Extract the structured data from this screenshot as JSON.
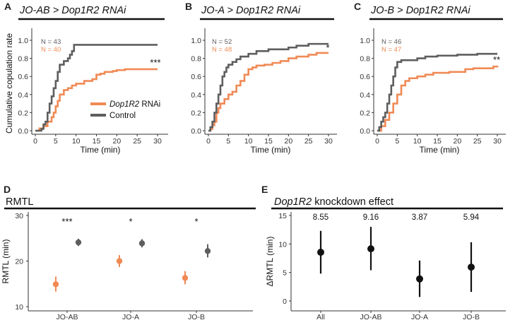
{
  "colors": {
    "rnai": "#F08A55",
    "control": "#5E5E5E",
    "effect": "#111111"
  },
  "chart_data": [
    {
      "panel": "A",
      "type": "line",
      "title": "JO-AB > Dop1R2 RNAi",
      "title_parts": [
        "JO-AB > ",
        "Dop1R2",
        " RNAi"
      ],
      "xlabel": "Time (min)",
      "ylabel": "Cumulative copulation rate",
      "xlim": [
        0,
        32
      ],
      "ylim": [
        0,
        1.05
      ],
      "xticks": [
        "0",
        "5",
        "10",
        "15",
        "20",
        "25",
        "30"
      ],
      "yticks": [
        "0.0",
        "0.2",
        "0.4",
        "0.6",
        "0.8",
        "1.0"
      ],
      "n_control": "N = 43",
      "n_rnai": "N = 40",
      "significance": "***",
      "legend": {
        "rnai": "Dop1R2",
        "rnai_suffix": " RNAi",
        "control": "Control"
      },
      "series": [
        {
          "name": "Control",
          "x": [
            0,
            1.5,
            2,
            2.5,
            3,
            3.5,
            4,
            4.5,
            5,
            5.5,
            6,
            7,
            8,
            8.5,
            9,
            9.5,
            30
          ],
          "y": [
            0,
            0.02,
            0.07,
            0.1,
            0.2,
            0.3,
            0.38,
            0.47,
            0.55,
            0.65,
            0.73,
            0.77,
            0.8,
            0.84,
            0.88,
            0.95,
            0.95
          ]
        },
        {
          "name": "Dop1R2 RNAi",
          "x": [
            0,
            1,
            2,
            3,
            4,
            4.5,
            5,
            5.5,
            6,
            7,
            8,
            9,
            10,
            12,
            14,
            15,
            16,
            17,
            19,
            20,
            22,
            30
          ],
          "y": [
            0,
            0.025,
            0.05,
            0.1,
            0.15,
            0.2,
            0.27,
            0.33,
            0.4,
            0.45,
            0.47,
            0.5,
            0.52,
            0.55,
            0.57,
            0.62,
            0.63,
            0.65,
            0.66,
            0.67,
            0.68,
            0.68
          ]
        }
      ]
    },
    {
      "panel": "B",
      "type": "line",
      "title": "JO-A > Dop1R2 RNAi",
      "title_parts": [
        "JO-A > ",
        "Dop1R2",
        " RNAi"
      ],
      "xlabel": "Time (min)",
      "ylabel": "",
      "xlim": [
        0,
        32
      ],
      "ylim": [
        0,
        1.05
      ],
      "xticks": [
        "0",
        "5",
        "10",
        "15",
        "20",
        "25",
        "30"
      ],
      "yticks": [
        "0.0",
        "0.2",
        "0.4",
        "0.6",
        "0.8",
        "1.0"
      ],
      "n_control": "N = 52",
      "n_rnai": "N = 48",
      "significance": "*",
      "series": [
        {
          "name": "Control",
          "x": [
            0,
            0.5,
            1,
            1.5,
            2,
            2.5,
            3,
            3.5,
            4,
            4.5,
            5,
            6,
            7,
            8,
            10,
            12,
            15,
            18,
            20,
            22,
            25,
            30
          ],
          "y": [
            0,
            0.04,
            0.1,
            0.2,
            0.3,
            0.4,
            0.5,
            0.6,
            0.65,
            0.7,
            0.73,
            0.76,
            0.79,
            0.82,
            0.85,
            0.88,
            0.9,
            0.9,
            0.92,
            0.94,
            0.96,
            0.96
          ]
        },
        {
          "name": "Dop1R2 RNAi",
          "x": [
            0,
            0.5,
            1,
            1.5,
            2,
            2.5,
            3,
            4,
            5,
            6,
            7,
            8,
            9,
            10,
            11,
            12,
            14,
            16,
            18,
            20,
            22,
            25,
            27,
            30
          ],
          "y": [
            0,
            0.02,
            0.06,
            0.1,
            0.2,
            0.25,
            0.3,
            0.35,
            0.4,
            0.43,
            0.5,
            0.55,
            0.62,
            0.68,
            0.7,
            0.72,
            0.73,
            0.75,
            0.77,
            0.8,
            0.82,
            0.84,
            0.86,
            0.86
          ]
        }
      ]
    },
    {
      "panel": "C",
      "type": "line",
      "title": "JO-B > Dop1R2 RNAi",
      "title_parts": [
        "JO-B > ",
        "Dop1R2",
        " RNAi"
      ],
      "xlabel": "Time (min)",
      "ylabel": "",
      "xlim": [
        0,
        32
      ],
      "ylim": [
        0,
        1.05
      ],
      "xticks": [
        "0",
        "5",
        "10",
        "15",
        "20",
        "25",
        "30"
      ],
      "yticks": [
        "0.0",
        "0.2",
        "0.4",
        "0.6",
        "0.8",
        "1.0"
      ],
      "n_control": "N = 46",
      "n_rnai": "N = 47",
      "significance": "**",
      "series": [
        {
          "name": "Control",
          "x": [
            0,
            0.5,
            1,
            1.5,
            2,
            2.5,
            3,
            3.5,
            4,
            4.5,
            5,
            6,
            8,
            10,
            12,
            15,
            20,
            25,
            30
          ],
          "y": [
            0,
            0.04,
            0.1,
            0.15,
            0.2,
            0.3,
            0.4,
            0.5,
            0.6,
            0.7,
            0.76,
            0.78,
            0.78,
            0.8,
            0.82,
            0.83,
            0.84,
            0.85,
            0.85
          ]
        },
        {
          "name": "Dop1R2 RNAi",
          "x": [
            0,
            1,
            2,
            3,
            4,
            5,
            6,
            7,
            8,
            10,
            12,
            14,
            16,
            18,
            20,
            22,
            24,
            26,
            28,
            29,
            30
          ],
          "y": [
            0,
            0.05,
            0.12,
            0.2,
            0.3,
            0.4,
            0.5,
            0.55,
            0.58,
            0.6,
            0.62,
            0.64,
            0.64,
            0.65,
            0.65,
            0.68,
            0.69,
            0.69,
            0.69,
            0.71,
            0.72
          ]
        }
      ]
    },
    {
      "panel": "D",
      "type": "scatter",
      "title": "RMTL",
      "ylabel": "RMTL (min)",
      "ylim": [
        9.5,
        30
      ],
      "yticks": [
        "10",
        "20",
        "30"
      ],
      "categories": [
        "JO-AB",
        "JO-A",
        "JO-B"
      ],
      "significance": [
        "***",
        "*",
        "*"
      ],
      "series": [
        {
          "name": "Dop1R2 RNAi",
          "values": [
            14.9,
            20.0,
            16.3
          ],
          "err_low": [
            13.3,
            18.7,
            14.9
          ],
          "err_high": [
            16.6,
            21.3,
            17.8
          ]
        },
        {
          "name": "Control",
          "values": [
            24.1,
            23.9,
            22.2
          ],
          "err_low": [
            23.3,
            23.0,
            20.8
          ],
          "err_high": [
            24.9,
            24.8,
            23.7
          ]
        }
      ]
    },
    {
      "panel": "E",
      "type": "scatter",
      "title": "Dop1R2 knockdown effect",
      "title_parts": [
        "Dop1R2",
        " knockdown effect"
      ],
      "ylabel": "ΔRMTL (min)",
      "ylim": [
        -1.5,
        15.5
      ],
      "yticks": [
        "0",
        "5",
        "10",
        "15"
      ],
      "categories": [
        "All",
        "JO-AB",
        "JO-A",
        "JO-B"
      ],
      "value_labels": [
        "8.55",
        "9.16",
        "3.87",
        "5.94"
      ],
      "values": [
        8.55,
        9.16,
        3.87,
        5.94
      ],
      "err_low": [
        4.8,
        5.4,
        0.7,
        1.6
      ],
      "err_high": [
        12.3,
        13.0,
        7.1,
        10.3
      ]
    }
  ]
}
